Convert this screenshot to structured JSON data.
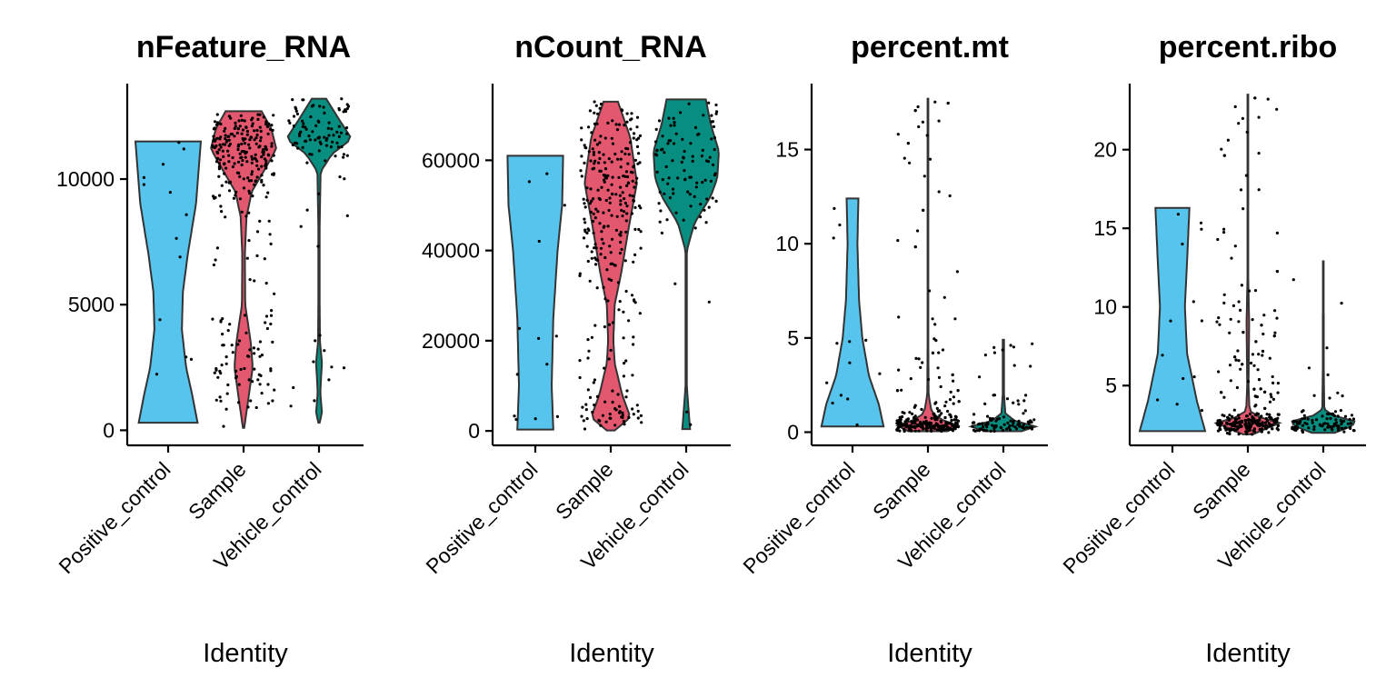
{
  "figure": {
    "xlabel": "Identity"
  },
  "colors": {
    "Positive_control": "#56C4EC",
    "Sample": "#E3576F",
    "Vehicle_control": "#078E80",
    "points": "#000000"
  },
  "chart_data": [
    {
      "type": "violin",
      "title": "nFeature_RNA",
      "xlabel": "Identity",
      "categories": [
        "Positive_control",
        "Sample",
        "Vehicle_control"
      ],
      "yticks": [
        0,
        5000,
        10000
      ],
      "ylim": [
        -600,
        13800
      ],
      "series": [
        {
          "name": "Positive_control",
          "min": 300,
          "max": 11500,
          "n": 13,
          "profile": [
            [
              300,
              0.9
            ],
            [
              1500,
              0.72
            ],
            [
              2500,
              0.55
            ],
            [
              4000,
              0.42
            ],
            [
              5500,
              0.45
            ],
            [
              7000,
              0.6
            ],
            [
              9000,
              0.85
            ],
            [
              11500,
              1.0
            ]
          ]
        },
        {
          "name": "Sample",
          "min": 100,
          "max": 12700,
          "n": 300,
          "profile": [
            [
              100,
              0.02
            ],
            [
              1000,
              0.12
            ],
            [
              2500,
              0.28
            ],
            [
              3500,
              0.22
            ],
            [
              5000,
              0.05
            ],
            [
              7000,
              0.04
            ],
            [
              8500,
              0.09
            ],
            [
              9500,
              0.25
            ],
            [
              10500,
              0.7
            ],
            [
              11200,
              1.0
            ],
            [
              12000,
              0.85
            ],
            [
              12700,
              0.55
            ]
          ]
        },
        {
          "name": "Vehicle_control",
          "min": 300,
          "max": 13200,
          "n": 100,
          "profile": [
            [
              300,
              0.02
            ],
            [
              700,
              0.09
            ],
            [
              1500,
              0.04
            ],
            [
              2700,
              0.09
            ],
            [
              3500,
              0.03
            ],
            [
              5000,
              0.02
            ],
            [
              8000,
              0.02
            ],
            [
              10300,
              0.05
            ],
            [
              11000,
              0.4
            ],
            [
              11600,
              1.0
            ],
            [
              12300,
              0.65
            ],
            [
              13200,
              0.22
            ]
          ]
        }
      ]
    },
    {
      "type": "violin",
      "title": "nCount_RNA",
      "xlabel": "Identity",
      "categories": [
        "Positive_control",
        "Sample",
        "Vehicle_control"
      ],
      "yticks": [
        0,
        20000,
        40000,
        60000
      ],
      "ylim": [
        -3200,
        77000
      ],
      "series": [
        {
          "name": "Positive_control",
          "min": 300,
          "max": 61000,
          "n": 13,
          "profile": [
            [
              300,
              0.55
            ],
            [
              10000,
              0.5
            ],
            [
              25000,
              0.55
            ],
            [
              40000,
              0.68
            ],
            [
              50000,
              0.82
            ],
            [
              61000,
              0.85
            ]
          ]
        },
        {
          "name": "Sample",
          "min": 100,
          "max": 73000,
          "n": 300,
          "profile": [
            [
              100,
              0.12
            ],
            [
              3000,
              0.6
            ],
            [
              8000,
              0.35
            ],
            [
              15000,
              0.12
            ],
            [
              20000,
              0.08
            ],
            [
              28000,
              0.12
            ],
            [
              35000,
              0.32
            ],
            [
              45000,
              0.55
            ],
            [
              55000,
              0.8
            ],
            [
              65000,
              0.6
            ],
            [
              73000,
              0.22
            ]
          ]
        },
        {
          "name": "Vehicle_control",
          "min": 400,
          "max": 73500,
          "n": 100,
          "profile": [
            [
              400,
              0.12
            ],
            [
              4000,
              0.08
            ],
            [
              10000,
              0.02
            ],
            [
              40000,
              0.02
            ],
            [
              46000,
              0.25
            ],
            [
              52000,
              0.75
            ],
            [
              56000,
              0.95
            ],
            [
              62000,
              1.0
            ],
            [
              68000,
              0.75
            ],
            [
              73500,
              0.6
            ]
          ]
        }
      ]
    },
    {
      "type": "violin",
      "title": "percent.mt",
      "xlabel": "Identity",
      "categories": [
        "Positive_control",
        "Sample",
        "Vehicle_control"
      ],
      "yticks": [
        0,
        5,
        10,
        15
      ],
      "ylim": [
        -0.7,
        18.5
      ],
      "series": [
        {
          "name": "Positive_control",
          "min": 0.3,
          "max": 12.4,
          "n": 13,
          "profile": [
            [
              0.3,
              0.95
            ],
            [
              1.5,
              0.8
            ],
            [
              3,
              0.5
            ],
            [
              5,
              0.3
            ],
            [
              7,
              0.2
            ],
            [
              10,
              0.15
            ],
            [
              12.4,
              0.18
            ]
          ]
        },
        {
          "name": "Sample",
          "min": 0.05,
          "max": 17.7,
          "n": 300,
          "profile": [
            [
              0.05,
              0.6
            ],
            [
              0.3,
              1.0
            ],
            [
              0.6,
              0.5
            ],
            [
              1.0,
              0.12
            ],
            [
              2,
              0.02
            ],
            [
              5,
              0.01
            ],
            [
              17.7,
              0.01
            ]
          ]
        },
        {
          "name": "Vehicle_control",
          "min": 0.05,
          "max": 4.9,
          "n": 100,
          "profile": [
            [
              0.05,
              0.55
            ],
            [
              0.3,
              1.0
            ],
            [
              0.6,
              0.35
            ],
            [
              1,
              0.06
            ],
            [
              2,
              0.02
            ],
            [
              4.9,
              0.02
            ]
          ]
        }
      ]
    },
    {
      "type": "violin",
      "title": "percent.ribo",
      "xlabel": "Identity",
      "categories": [
        "Positive_control",
        "Sample",
        "Vehicle_control"
      ],
      "yticks": [
        5,
        10,
        15,
        20
      ],
      "ylim": [
        1.2,
        24.2
      ],
      "series": [
        {
          "name": "Positive_control",
          "min": 2.1,
          "max": 16.3,
          "n": 13,
          "profile": [
            [
              2.1,
              1.0
            ],
            [
              4,
              0.75
            ],
            [
              7,
              0.45
            ],
            [
              10,
              0.38
            ],
            [
              13,
              0.45
            ],
            [
              16.3,
              0.52
            ]
          ]
        },
        {
          "name": "Sample",
          "min": 1.9,
          "max": 23.5,
          "n": 300,
          "profile": [
            [
              1.9,
              0.15
            ],
            [
              2.3,
              0.6
            ],
            [
              2.6,
              1.0
            ],
            [
              3.0,
              0.35
            ],
            [
              3.4,
              0.05
            ],
            [
              5,
              0.02
            ],
            [
              9,
              0.04
            ],
            [
              12,
              0.01
            ],
            [
              23.5,
              0.01
            ]
          ]
        },
        {
          "name": "Vehicle_control",
          "min": 2.0,
          "max": 12.9,
          "n": 100,
          "profile": [
            [
              2.0,
              0.35
            ],
            [
              2.4,
              0.85
            ],
            [
              2.7,
              1.0
            ],
            [
              3.1,
              0.3
            ],
            [
              3.5,
              0.03
            ],
            [
              6,
              0.015
            ],
            [
              12.9,
              0.01
            ]
          ]
        }
      ]
    }
  ]
}
